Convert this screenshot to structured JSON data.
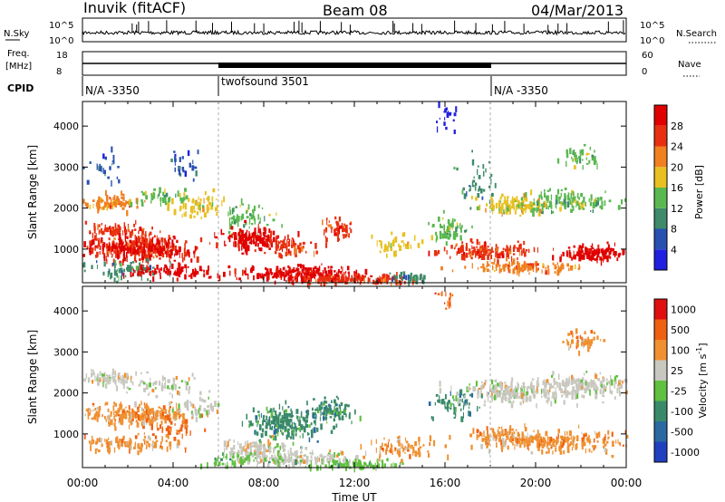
{
  "header": {
    "site": "Inuvik (fitACF)",
    "beam": "Beam 08",
    "date": "04/Mar/2013"
  },
  "summary": {
    "nsky_label": "N.Sky",
    "nsearch_label": "N.Search",
    "noise_ticks": [
      "10^5",
      "10^0"
    ],
    "freq_label_1": "Freq.",
    "freq_label_2": "[MHz]",
    "freq_ticks": [
      "18",
      "8"
    ],
    "nave_label": "Nave",
    "nave_ticks": [
      "60",
      "0"
    ],
    "cpid_label": "CPID",
    "cpid_segments": [
      {
        "label": "N/A -3350",
        "start_hour": 0,
        "end_hour": 6
      },
      {
        "label": "twofsound 3501",
        "start_hour": 6,
        "end_hour": 18
      },
      {
        "label": "N/A -3350",
        "start_hour": 18,
        "end_hour": 24
      }
    ]
  },
  "chart_data": [
    {
      "type": "heatmap",
      "title": "",
      "xlabel": "",
      "ylabel": "Slant Range [km]",
      "xlim": [
        0,
        24
      ],
      "ylim": [
        180,
        4600
      ],
      "yticks": [
        "1000",
        "2000",
        "3000",
        "4000"
      ],
      "colorbar_label": "Power [dB]",
      "colorbar_ticks": [
        "4",
        "8",
        "12",
        "16",
        "20",
        "24",
        "28"
      ],
      "colorbar_range": [
        0,
        32
      ],
      "colors": [
        "#2020e0",
        "#2850b0",
        "#3e8a6a",
        "#5ab850",
        "#e8c020",
        "#f08020",
        "#e83010",
        "#e00000"
      ]
    },
    {
      "type": "heatmap",
      "title": "",
      "xlabel": "Time UT",
      "ylabel": "Slant Range [km]",
      "xlim": [
        0,
        24
      ],
      "ylim": [
        180,
        4600
      ],
      "x_tick_labels": [
        "00:00",
        "04:00",
        "08:00",
        "12:00",
        "16:00",
        "20:00",
        "00:00"
      ],
      "yticks": [
        "1000",
        "2000",
        "3000",
        "4000"
      ],
      "colorbar_label": "Velocity [m s",
      "colorbar_label_exp": "-1",
      "colorbar_label_close": "]",
      "colorbar_ticks": [
        "1000",
        "500",
        "100",
        "25",
        "-25",
        "-100",
        "-500",
        "-1000"
      ],
      "colors": [
        "#2040c0",
        "#2a6aa0",
        "#3a8a6a",
        "#60c040",
        "#c8c8c0",
        "#f09030",
        "#f06010",
        "#e01010"
      ]
    }
  ]
}
